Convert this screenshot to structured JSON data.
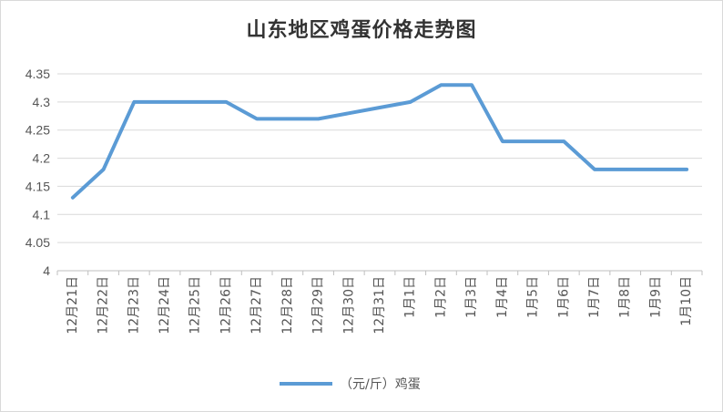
{
  "chart_data": {
    "type": "line",
    "title": "山东地区鸡蛋价格走势图",
    "categories": [
      "12月21日",
      "12月22日",
      "12月23日",
      "12月24日",
      "12月25日",
      "12月26日",
      "12月27日",
      "12月28日",
      "12月29日",
      "12月30日",
      "12月31日",
      "1月1日",
      "1月2日",
      "1月3日",
      "1月4日",
      "1月5日",
      "1月6日",
      "1月7日",
      "1月8日",
      "1月9日",
      "1月10日"
    ],
    "y_ticks": [
      "4",
      "4.05",
      "4.1",
      "4.15",
      "4.2",
      "4.25",
      "4.3",
      "4.35"
    ],
    "ylim": [
      4,
      4.35
    ],
    "grid": true,
    "legend_position": "bottom",
    "series": [
      {
        "name": "（元/斤）鸡蛋",
        "color": "#5b9bd5",
        "values": [
          4.13,
          4.18,
          4.3,
          4.3,
          4.3,
          4.3,
          4.27,
          4.27,
          4.27,
          4.28,
          4.29,
          4.3,
          4.33,
          4.33,
          4.23,
          4.23,
          4.23,
          4.18,
          4.18,
          4.18,
          4.18
        ]
      }
    ]
  }
}
